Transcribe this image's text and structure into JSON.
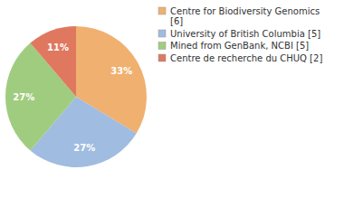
{
  "chart_data": {
    "type": "pie",
    "categories": [
      "Centre for Biodiversity Genomics [6]",
      "University of British Columbia [5]",
      "Mined from GenBank, NCBI [5]",
      "Centre de recherche du CHUQ [2]"
    ],
    "values": [
      33,
      27,
      27,
      11
    ],
    "value_labels": [
      "33%",
      "27%",
      "27%",
      "11%"
    ],
    "colors": [
      "#f0b070",
      "#a0bce0",
      "#a0cc80",
      "#e07860"
    ],
    "data_labels": true,
    "legend": "top-right"
  }
}
